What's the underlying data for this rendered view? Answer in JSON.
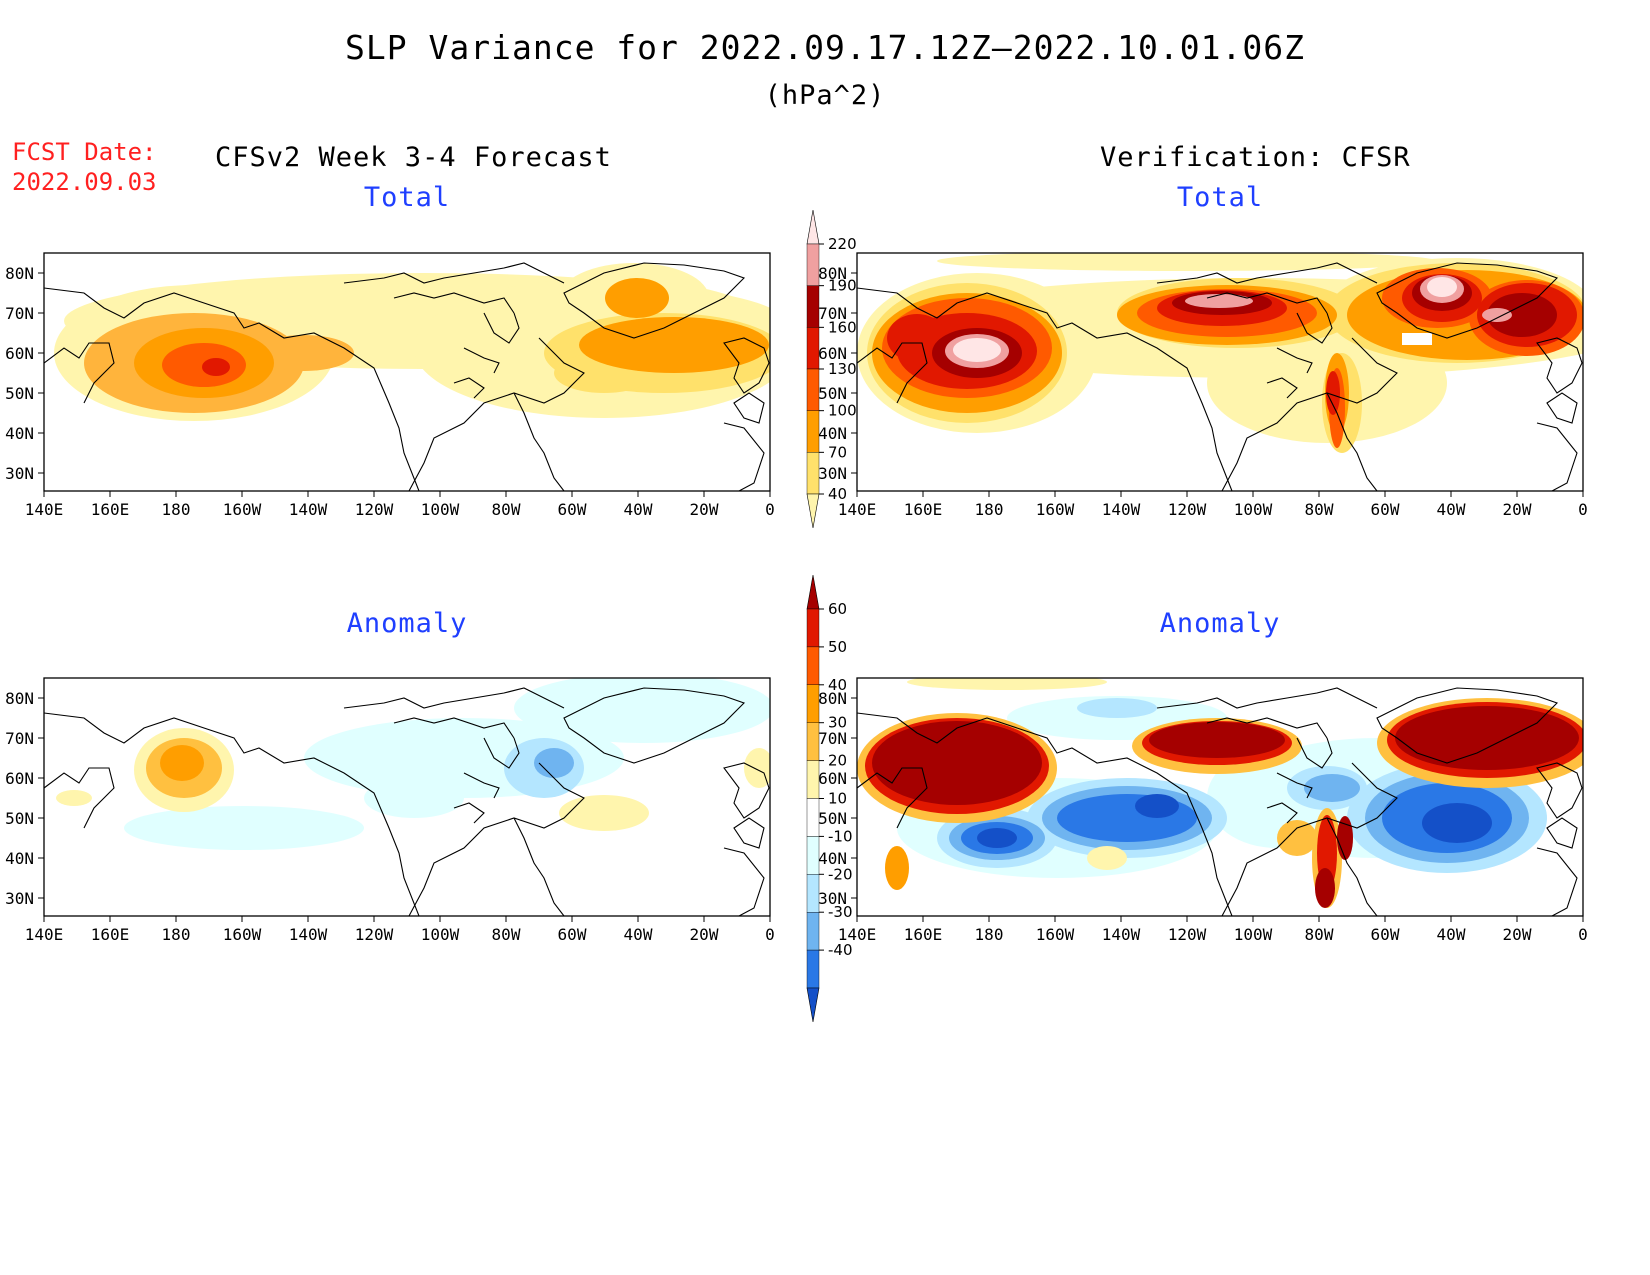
{
  "title": "SLP Variance for 2022.09.17.12Z—2022.10.01.06Z",
  "units": "(hPa^2)",
  "fcst_date_label": "FCST Date:",
  "fcst_date_value": "2022.09.03",
  "left_header": "CFSv2 Week 3-4 Forecast",
  "right_header": "Verification: CFSR",
  "panels": {
    "forecast_total": "Total",
    "verification_total": "Total",
    "forecast_anomaly": "Anomaly",
    "verification_anomaly": "Anomaly"
  },
  "map": {
    "lat_labels": [
      "80N",
      "70N",
      "60N",
      "50N",
      "40N",
      "30N"
    ],
    "lon_labels": [
      "140E",
      "160E",
      "180",
      "160W",
      "140W",
      "120W",
      "100W",
      "80W",
      "60W",
      "40W",
      "20W",
      "0"
    ]
  },
  "total_colorbar": {
    "levels": [
      "40",
      "70",
      "100",
      "130",
      "160",
      "190",
      "220"
    ],
    "colors": [
      "#fff5ad",
      "#ffe16b",
      "#ff9e00",
      "#ff5a00",
      "#e11800",
      "#a50000",
      "#f0a0a0",
      "#ffe6e6"
    ]
  },
  "anomaly_colorbar": {
    "levels": [
      "60",
      "50",
      "40",
      "30",
      "20",
      "10",
      "-10",
      "-20",
      "-30",
      "-40"
    ],
    "colors": [
      "#a50000",
      "#e11800",
      "#ff5a00",
      "#ff9e00",
      "#ffc040",
      "#fff5ad",
      "#ffffff",
      "#e0ffff",
      "#b4e6ff",
      "#6fb4f0",
      "#2a78e6",
      "#1450c8"
    ]
  },
  "colors": {
    "title_text": "#000000",
    "fcst_date": "#ff2020",
    "panel_title": "#1f3fff"
  }
}
